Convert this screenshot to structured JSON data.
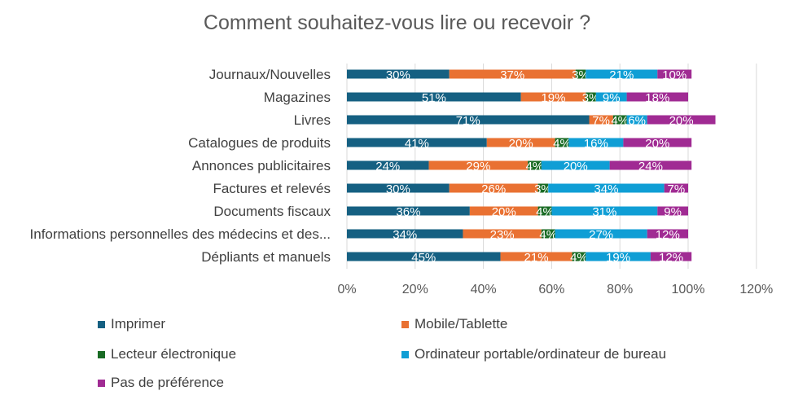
{
  "chart_data": {
    "type": "bar",
    "orientation": "horizontal",
    "stacked": true,
    "title": "Comment souhaitez-vous lire ou recevoir ?",
    "categories": [
      "Journaux/Nouvelles",
      "Magazines",
      "Livres",
      "Catalogues de produits",
      "Annonces publicitaires",
      "Factures et relevés",
      "Documents fiscaux",
      "Informations personnelles des médecins et des...",
      "Dépliants et manuels"
    ],
    "series": [
      {
        "name": "Imprimer",
        "color": "#156082",
        "values": [
          30,
          51,
          71,
          41,
          24,
          30,
          36,
          34,
          45
        ]
      },
      {
        "name": "Mobile/Tablette",
        "color": "#E97132",
        "values": [
          37,
          19,
          7,
          20,
          29,
          26,
          20,
          23,
          21
        ]
      },
      {
        "name": "Lecteur électronique",
        "color": "#196B24",
        "values": [
          3,
          3,
          4,
          4,
          4,
          3,
          4,
          4,
          4
        ]
      },
      {
        "name": "Ordinateur portable/ordinateur de bureau",
        "color": "#0F9ED5",
        "values": [
          21,
          9,
          6,
          16,
          20,
          34,
          31,
          27,
          19
        ]
      },
      {
        "name": "Pas de préférence",
        "color": "#A02B93",
        "values": [
          10,
          18,
          20,
          20,
          24,
          7,
          9,
          12,
          12
        ]
      }
    ],
    "xlim": [
      0,
      120
    ],
    "xticks": [
      "0%",
      "20%",
      "40%",
      "60%",
      "80%",
      "100%",
      "120%"
    ],
    "grid": true,
    "legend_position": "bottom"
  }
}
